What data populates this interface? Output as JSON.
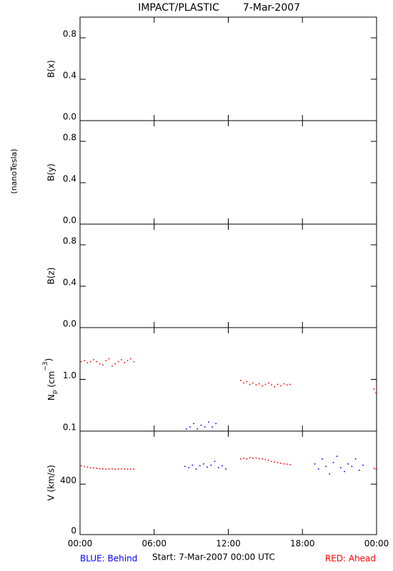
{
  "title": "IMPACT/PLASTIC",
  "date": "7-Mar-2007",
  "units_label": "(nanoTesla)",
  "footer": {
    "behind": "BLUE: Behind",
    "start": "Start:  7-Mar-2007 00:00 UTC",
    "ahead": "RED: Ahead"
  },
  "chart_data": [
    {
      "type": "scatter",
      "y_label": "B(x)",
      "xlim": [
        0,
        24
      ],
      "xticks": [
        0,
        6,
        12,
        18,
        24
      ],
      "ylim": [
        0,
        1
      ],
      "yticks": [
        {
          "value": 0,
          "label": "0.0"
        },
        {
          "value": 0.4,
          "label": "0.4"
        },
        {
          "value": 0.8,
          "label": "0.8"
        }
      ],
      "series": []
    },
    {
      "type": "scatter",
      "y_label": "B(y)",
      "xlim": [
        0,
        24
      ],
      "xticks": [
        0,
        6,
        12,
        18,
        24
      ],
      "ylim": [
        0,
        1
      ],
      "yticks": [
        {
          "value": 0,
          "label": "0.0"
        },
        {
          "value": 0.4,
          "label": "0.4"
        },
        {
          "value": 0.8,
          "label": "0.8"
        }
      ],
      "series": []
    },
    {
      "type": "scatter",
      "y_label": "B(z)",
      "xlim": [
        0,
        24
      ],
      "xticks": [
        0,
        6,
        12,
        18,
        24
      ],
      "ylim": [
        0,
        1
      ],
      "yticks": [
        {
          "value": 0,
          "label": "0.0"
        },
        {
          "value": 0.4,
          "label": "0.4"
        },
        {
          "value": 0.8,
          "label": "0.8"
        }
      ],
      "series": []
    },
    {
      "type": "scatter",
      "y_label_parts": [
        "N",
        "p",
        " (cm",
        "−3",
        ")"
      ],
      "log_scale": true,
      "xlim": [
        0,
        24
      ],
      "xticks": [
        0,
        6,
        12,
        18,
        24
      ],
      "ylim": [
        0.1,
        10
      ],
      "yticks": [
        0.1,
        {
          "value": 1,
          "label": "1.0"
        }
      ],
      "series": [
        {
          "color": "#ff0000",
          "x": [
            0.1,
            0.35,
            0.6,
            0.85,
            1.1,
            1.35,
            1.6,
            1.85,
            2.1,
            2.35,
            2.6,
            2.85,
            3.1,
            3.35,
            3.6,
            3.85,
            4.1,
            4.35,
            13.0,
            13.25,
            13.5,
            13.75,
            14.0,
            14.25,
            14.5,
            14.75,
            15.0,
            15.25,
            15.5,
            15.75,
            16.0,
            16.25,
            16.5,
            16.75,
            17.0,
            23.8,
            23.95
          ],
          "values": [
            2.2,
            2.3,
            2.1,
            2.2,
            2.4,
            2.2,
            2.0,
            1.9,
            2.3,
            2.5,
            1.8,
            2.0,
            2.2,
            2.4,
            2.1,
            2.3,
            2.5,
            2.2,
            0.95,
            0.85,
            0.9,
            0.8,
            0.85,
            0.78,
            0.82,
            0.75,
            0.8,
            0.85,
            0.78,
            0.72,
            0.8,
            0.75,
            0.82,
            0.78,
            0.8,
            0.65,
            0.55
          ]
        },
        {
          "color": "#0000ff",
          "x": [
            8.6,
            8.9,
            9.2,
            9.5,
            9.8,
            10.1,
            10.4,
            10.7,
            11.0
          ],
          "values": [
            0.11,
            0.12,
            0.14,
            0.11,
            0.13,
            0.12,
            0.15,
            0.12,
            0.14
          ]
        }
      ]
    },
    {
      "type": "scatter",
      "y_label": "V (km/s)",
      "xlim": [
        0,
        24
      ],
      "xticks": [
        {
          "value": 0,
          "label": "00:00"
        },
        {
          "value": 6,
          "label": "06:00"
        },
        {
          "value": 12,
          "label": "12:00"
        },
        {
          "value": 18,
          "label": "18:00"
        },
        {
          "value": 24,
          "label": "00:00"
        }
      ],
      "ylim": [
        0,
        820
      ],
      "yticks": [
        0,
        400
      ],
      "series": [
        {
          "color": "#ff0000",
          "x": [
            0.1,
            0.35,
            0.6,
            0.85,
            1.1,
            1.35,
            1.6,
            1.85,
            2.1,
            2.35,
            2.6,
            2.85,
            3.1,
            3.35,
            3.6,
            3.85,
            4.1,
            4.35,
            13.0,
            13.25,
            13.5,
            13.75,
            14.0,
            14.25,
            14.5,
            14.75,
            15.0,
            15.25,
            15.5,
            15.75,
            16.0,
            16.25,
            16.5,
            16.75,
            17.0,
            23.8,
            23.95
          ],
          "values": [
            545,
            540,
            535,
            530,
            528,
            525,
            522,
            520,
            518,
            520,
            522,
            518,
            520,
            522,
            520,
            518,
            520,
            518,
            600,
            605,
            600,
            610,
            605,
            608,
            602,
            600,
            595,
            590,
            580,
            575,
            570,
            565,
            560,
            558,
            555,
            525,
            520
          ]
        },
        {
          "color": "#0000ff",
          "x": [
            8.5,
            8.8,
            9.1,
            9.4,
            9.7,
            10.0,
            10.3,
            10.6,
            10.9,
            11.2,
            11.5,
            11.8,
            19.0,
            19.3,
            19.6,
            19.9,
            20.2,
            20.5,
            20.8,
            21.1,
            21.4,
            21.7,
            22.0,
            22.3,
            22.6,
            22.9
          ],
          "values": [
            540,
            530,
            550,
            520,
            545,
            560,
            535,
            550,
            580,
            530,
            545,
            520,
            560,
            520,
            600,
            540,
            480,
            570,
            620,
            530,
            500,
            560,
            540,
            600,
            510,
            550
          ]
        }
      ]
    }
  ]
}
